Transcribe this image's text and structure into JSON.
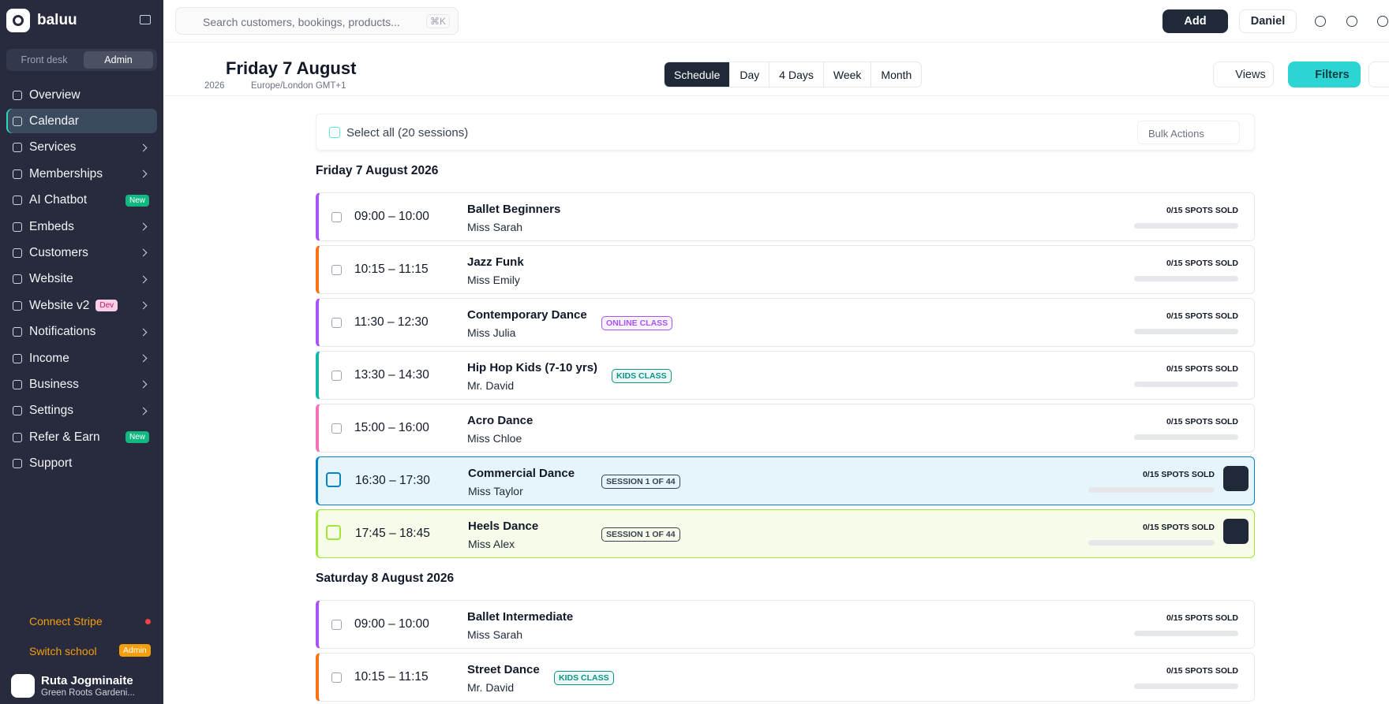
{
  "sidebar": {
    "brand": "baluu",
    "tabs": [
      "Front desk",
      "Admin"
    ],
    "active_tab": 1,
    "nav": [
      {
        "label": "Overview"
      },
      {
        "label": "Calendar",
        "active": true
      },
      {
        "label": "Services",
        "submenu": true
      },
      {
        "label": "Memberships",
        "submenu": true
      },
      {
        "label": "AI Chatbot",
        "badge": "New"
      },
      {
        "label": "Embeds",
        "submenu": true
      },
      {
        "label": "Customers",
        "submenu": true
      },
      {
        "label": "Website",
        "submenu": true
      },
      {
        "label": "Website v2",
        "badge": "Dev",
        "submenu": true
      },
      {
        "label": "Notifications",
        "submenu": true
      },
      {
        "label": "Income",
        "submenu": true
      },
      {
        "label": "Business",
        "submenu": true
      },
      {
        "label": "Settings",
        "submenu": true
      },
      {
        "label": "Refer & Earn",
        "badge": "New"
      },
      {
        "label": "Support"
      }
    ],
    "connect": "Connect Stripe",
    "switch": "Switch school",
    "switch_badge": "Admin",
    "user_name": "Ruta Jogminaite",
    "user_org": "Green Roots Gardeni..."
  },
  "topbar": {
    "search": "Search customers, bookings, products...",
    "shortcut": "⌘K",
    "add": "Add",
    "user": "Daniel"
  },
  "header": {
    "title": "Friday 7 August",
    "year": "2026",
    "timezone": "Europe/London GMT+1",
    "views": [
      "Schedule",
      "Day",
      "4 Days",
      "Week",
      "Month"
    ],
    "active_view": 0,
    "views_button": "Views",
    "filters": "Filters"
  },
  "list": {
    "select_all": "Select all (20 sessions)",
    "bulk": "Bulk Actions",
    "days": [
      {
        "date": "Friday 7 August 2026",
        "sessions": [
          {
            "time": "09:00 – 10:00",
            "name": "Ballet Beginners",
            "teacher": "Miss Sarah",
            "spots": "0/15 SPOTS SOLD",
            "color": "#a855f7"
          },
          {
            "time": "10:15 – 11:15",
            "name": "Jazz Funk",
            "teacher": "Miss Emily",
            "spots": "0/15 SPOTS SOLD",
            "color": "#f97316"
          },
          {
            "time": "11:30 – 12:30",
            "name": "Contemporary Dance",
            "teacher": "Miss Julia",
            "spots": "0/15 SPOTS SOLD",
            "color": "#a855f7",
            "tag": {
              "text": "ONLINE CLASS",
              "color": "#a855f7"
            }
          },
          {
            "time": "13:30 – 14:30",
            "name": "Hip Hop Kids (7-10 yrs)",
            "teacher": "Mr. David",
            "spots": "0/15 SPOTS SOLD",
            "color": "#14b8a6",
            "tag": {
              "text": "KIDS CLASS",
              "color": "#0d9488"
            }
          },
          {
            "time": "15:00 – 16:00",
            "name": "Acro Dance",
            "teacher": "Miss Chloe",
            "spots": "0/15 SPOTS SOLD",
            "color": "#f472b6"
          },
          {
            "time": "16:30 – 17:30",
            "name": "Commercial Dance",
            "teacher": "Miss Taylor",
            "spots": "0/15 SPOTS SOLD",
            "color": "#0284c7",
            "highlight": "#e6f4fc",
            "tag": {
              "text": "SESSION 1 OF 44",
              "color": "#374151"
            }
          },
          {
            "time": "17:45 – 18:45",
            "name": "Heels Dance",
            "teacher": "Miss Alex",
            "spots": "0/15 SPOTS SOLD",
            "color": "#a3e635",
            "highlight": "#f7fbe9",
            "tag": {
              "text": "SESSION 1 OF 44",
              "color": "#374151"
            }
          }
        ]
      },
      {
        "date": "Saturday 8 August 2026",
        "sessions": [
          {
            "time": "09:00 – 10:00",
            "name": "Ballet Intermediate",
            "teacher": "Miss Sarah",
            "spots": "0/15 SPOTS SOLD",
            "color": "#a855f7"
          },
          {
            "time": "10:15 – 11:15",
            "name": "Street Dance",
            "teacher": "Mr. David",
            "spots": "0/15 SPOTS SOLD",
            "color": "#f97316",
            "tag": {
              "text": "KIDS CLASS",
              "color": "#0d9488"
            }
          }
        ]
      }
    ]
  }
}
